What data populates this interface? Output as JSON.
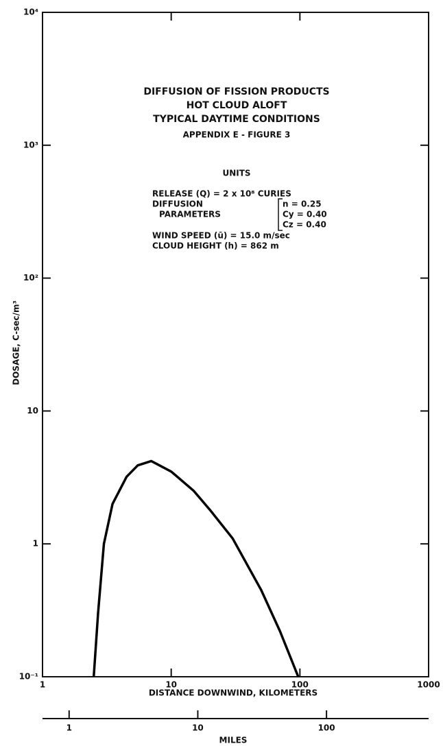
{
  "chart_data": {
    "type": "line",
    "title_lines": [
      "DIFFUSION OF FISSION PRODUCTS",
      "HOT CLOUD ALOFT",
      "TYPICAL DAYTIME CONDITIONS"
    ],
    "subtitle": "APPENDIX E - FIGURE 3",
    "units_heading": "UNITS",
    "annotations": {
      "release": "RELEASE (Q) = 2 x 10⁸ CURIES",
      "diffusion": "DIFFUSION",
      "parameters": "PARAMETERS",
      "n": "n = 0.25",
      "cy": "Cy = 0.40",
      "cz": "Cz = 0.40",
      "wind": "WIND SPEED (ū) = 15.0 m/sec",
      "height": "CLOUD HEIGHT (h) = 862 m"
    },
    "xlabel": "DISTANCE DOWNWIND, KILOMETERS",
    "ylabel": "DOSAGE, C-sec/m³",
    "x2label": "MILES",
    "xscale": "log",
    "yscale": "log",
    "xlim": [
      1,
      1000
    ],
    "ylim": [
      0.1,
      10000
    ],
    "xticks": [
      1,
      10,
      100,
      1000
    ],
    "yticks": [
      {
        "value": 0.1,
        "label": "10⁻¹"
      },
      1,
      10,
      {
        "value": 100,
        "label": "10²"
      },
      {
        "value": 1000,
        "label": "10³"
      },
      {
        "value": 10000,
        "label": "10⁴"
      }
    ],
    "x2lim": [
      0.6214,
      621.4
    ],
    "x2ticks": [
      1,
      10,
      100
    ],
    "grid": false,
    "x": [
      2.5,
      2.7,
      3,
      3.5,
      4.5,
      5.5,
      7,
      10,
      15,
      20,
      30,
      50,
      70,
      97
    ],
    "series": [
      {
        "name": "Dosage",
        "color": "#000000",
        "values": [
          0.1,
          0.3,
          1,
          2,
          3.2,
          3.9,
          4.2,
          3.5,
          2.5,
          1.8,
          1.1,
          0.45,
          0.22,
          0.1
        ]
      }
    ]
  }
}
